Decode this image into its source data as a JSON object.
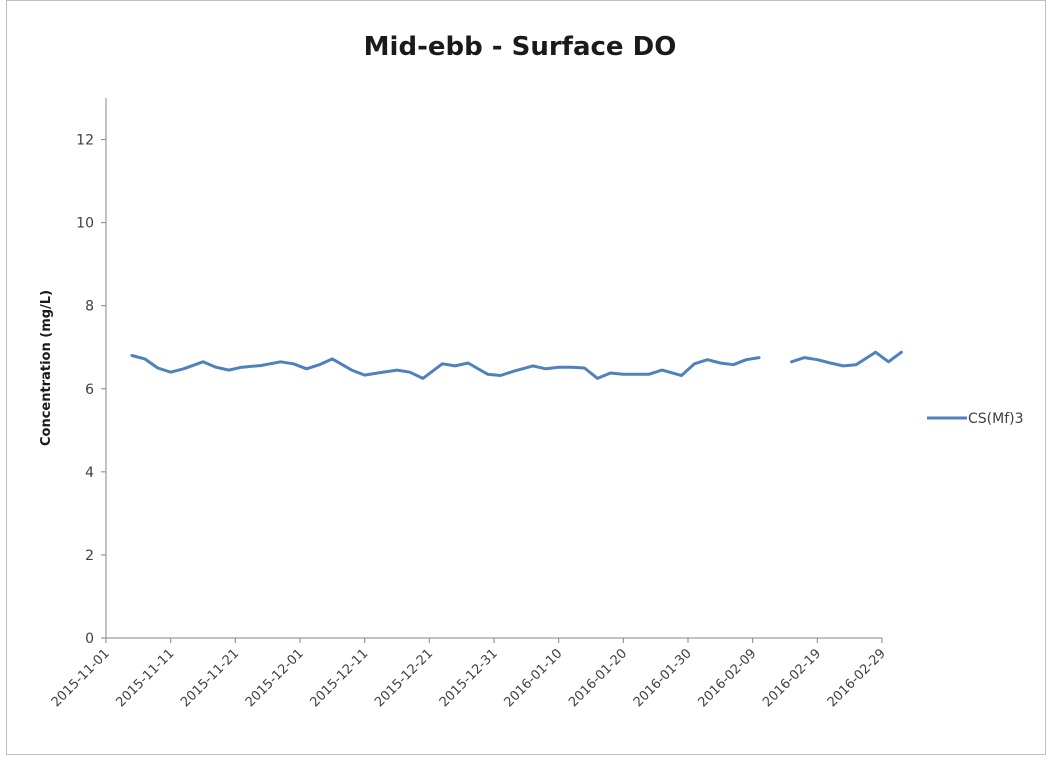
{
  "chart_data": {
    "type": "line",
    "title": "Mid-ebb - Surface DO",
    "xlabel": "",
    "ylabel": "Concentration (mg/L)",
    "ylim": [
      0,
      13
    ],
    "yticks": [
      0,
      2,
      4,
      6,
      8,
      10,
      12
    ],
    "xlim": [
      "2015-11-01",
      "2016-02-29"
    ],
    "xticks": [
      "2015-11-01",
      "2015-11-11",
      "2015-11-21",
      "2015-12-01",
      "2015-12-11",
      "2015-12-21",
      "2015-12-31",
      "2016-01-10",
      "2016-01-20",
      "2016-01-30",
      "2016-02-09",
      "2016-02-19",
      "2016-02-29"
    ],
    "grid": false,
    "legend": "right",
    "color": "#4f81bd",
    "series": [
      {
        "name": "CS(Mf)3",
        "points": [
          [
            "2015-11-05",
            6.8
          ],
          [
            "2015-11-07",
            6.72
          ],
          [
            "2015-11-09",
            6.5
          ],
          [
            "2015-11-11",
            6.4
          ],
          [
            "2015-11-13",
            6.48
          ],
          [
            "2015-11-16",
            6.65
          ],
          [
            "2015-11-18",
            6.52
          ],
          [
            "2015-11-20",
            6.45
          ],
          [
            "2015-11-22",
            6.52
          ],
          [
            "2015-11-25",
            6.56
          ],
          [
            "2015-11-28",
            6.65
          ],
          [
            "2015-11-30",
            6.6
          ],
          [
            "2015-12-02",
            6.48
          ],
          [
            "2015-12-04",
            6.58
          ],
          [
            "2015-12-06",
            6.72
          ],
          [
            "2015-12-09",
            6.45
          ],
          [
            "2015-12-11",
            6.33
          ],
          [
            "2015-12-13",
            6.38
          ],
          [
            "2015-12-16",
            6.45
          ],
          [
            "2015-12-18",
            6.4
          ],
          [
            "2015-12-20",
            6.25
          ],
          [
            "2015-12-23",
            6.6
          ],
          [
            "2015-12-25",
            6.55
          ],
          [
            "2015-12-27",
            6.62
          ],
          [
            "2015-12-30",
            6.35
          ],
          [
            "2016-01-01",
            6.32
          ],
          [
            "2016-01-03",
            6.42
          ],
          [
            "2016-01-06",
            6.55
          ],
          [
            "2016-01-08",
            6.48
          ],
          [
            "2016-01-10",
            6.52
          ],
          [
            "2016-01-12",
            6.52
          ],
          [
            "2016-01-14",
            6.5
          ],
          [
            "2016-01-16",
            6.25
          ],
          [
            "2016-01-18",
            6.38
          ],
          [
            "2016-01-20",
            6.35
          ],
          [
            "2016-01-22",
            6.35
          ],
          [
            "2016-01-24",
            6.35
          ],
          [
            "2016-01-26",
            6.45
          ],
          [
            "2016-01-29",
            6.32
          ],
          [
            "2016-01-31",
            6.6
          ],
          [
            "2016-02-02",
            6.7
          ],
          [
            "2016-02-04",
            6.62
          ],
          [
            "2016-02-06",
            6.58
          ],
          [
            "2016-02-08",
            6.7
          ],
          [
            "2016-02-10",
            6.75
          ],
          null,
          [
            "2016-02-15",
            6.65
          ],
          [
            "2016-02-17",
            6.75
          ],
          [
            "2016-02-19",
            6.7
          ],
          [
            "2016-02-21",
            6.62
          ],
          [
            "2016-02-23",
            6.55
          ],
          [
            "2016-02-25",
            6.58
          ],
          [
            "2016-02-28",
            6.88
          ],
          [
            "2016-03-01",
            6.65
          ],
          [
            "2016-03-03",
            6.88
          ]
        ]
      }
    ]
  }
}
